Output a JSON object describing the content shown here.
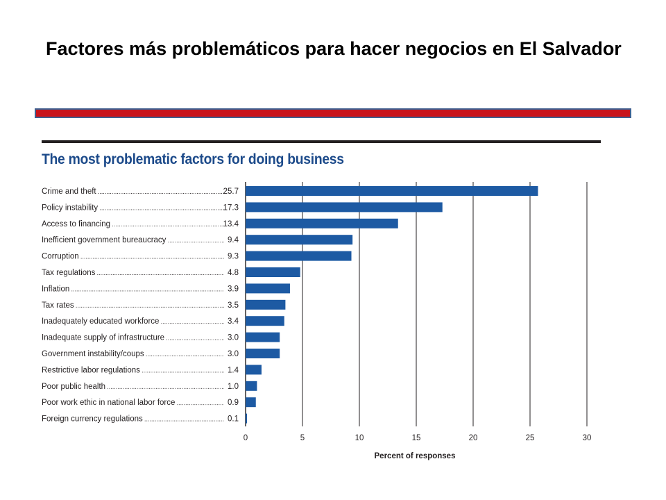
{
  "slide": {
    "title": "Factores más problemáticos para hacer negocios en El Salvador"
  },
  "colors": {
    "accent_bar": "#c8141c",
    "bar": "#1d5aa3",
    "chart_title": "#1c4a8a"
  },
  "chart_data": {
    "type": "bar",
    "orientation": "horizontal",
    "title": "The most problematic factors for doing business",
    "xlabel": "Percent of responses",
    "ylabel": "",
    "xlim": [
      0,
      30
    ],
    "xticks": [
      0,
      5,
      10,
      15,
      20,
      25,
      30
    ],
    "grid": true,
    "categories": [
      "Crime and theft",
      "Policy instability",
      "Access to financing",
      "Inefficient government bureaucracy",
      "Corruption",
      "Tax regulations",
      "Inflation",
      "Tax rates",
      "Inadequately educated workforce",
      "Inadequate supply of infrastructure",
      "Government instability/coups",
      "Restrictive labor regulations",
      "Poor public health",
      "Poor work ethic in national labor force",
      "Foreign currency regulations"
    ],
    "values": [
      25.7,
      17.3,
      13.4,
      9.4,
      9.3,
      4.8,
      3.9,
      3.5,
      3.4,
      3.0,
      3.0,
      1.4,
      1.0,
      0.9,
      0.1
    ],
    "value_labels": [
      "25.7",
      "17.3",
      "13.4",
      "9.4",
      "9.3",
      "4.8",
      "3.9",
      "3.5",
      "3.4",
      "3.0",
      "3.0",
      "1.4",
      "1.0",
      "0.9",
      "0.1"
    ]
  }
}
